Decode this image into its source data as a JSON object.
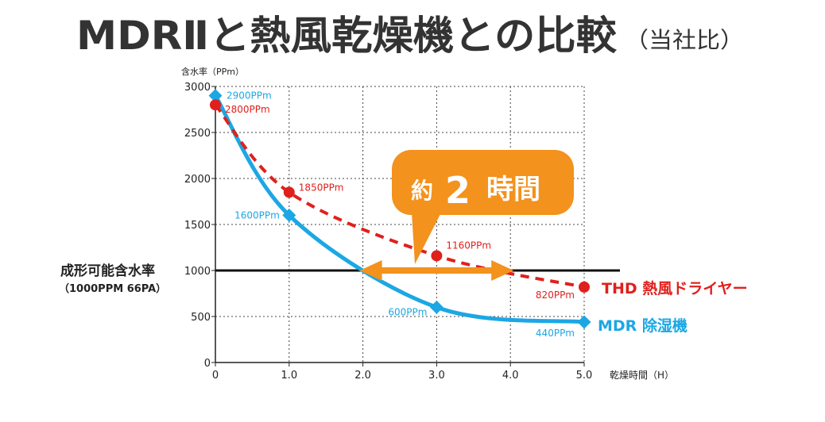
{
  "title": {
    "main": "MDRⅡと熱風乾燥機との比較",
    "sub": "（当社比）"
  },
  "chart_data": {
    "type": "line",
    "ylabel": "含水率（PPm）",
    "xlabel": "乾燥時間（H）",
    "xlim": [
      0,
      5
    ],
    "ylim": [
      0,
      3000
    ],
    "xticks": [
      0,
      1,
      2,
      3,
      4,
      5
    ],
    "xtick_labels": [
      "0",
      "1.0",
      "2.0",
      "3.0",
      "4.0",
      "5.0"
    ],
    "yticks": [
      0,
      500,
      1000,
      1500,
      2000,
      2500,
      3000
    ],
    "ytick_labels": [
      "0",
      "500",
      "1000",
      "1500",
      "2000",
      "2500",
      "3000"
    ],
    "grid": true,
    "series": [
      {
        "name": "THD 熱風ドライヤー",
        "color": "#e0201c",
        "style": "dashed",
        "x": [
          0,
          1,
          3,
          5
        ],
        "values": [
          2800,
          1850,
          1160,
          820
        ],
        "labels": [
          "2800PPm",
          "1850PPm",
          "1160PPm",
          "820PPm"
        ]
      },
      {
        "name": "MDR 除湿機",
        "color": "#1ca7e4",
        "style": "solid",
        "x": [
          0,
          1,
          3,
          5
        ],
        "values": [
          2900,
          1600,
          600,
          440
        ],
        "labels": [
          "2900PPm",
          "1600PPm",
          "600PPm",
          "440PPm"
        ]
      }
    ],
    "threshold": {
      "value": 1000,
      "label": "成形可能含水率",
      "sublabel": "（1000PPM 66PA）"
    },
    "annotation": {
      "prefix": "約",
      "number": "2",
      "suffix": "時間",
      "from_x": 2.0,
      "to_x": 4.0,
      "y": 1000,
      "color": "#f3921d"
    }
  }
}
